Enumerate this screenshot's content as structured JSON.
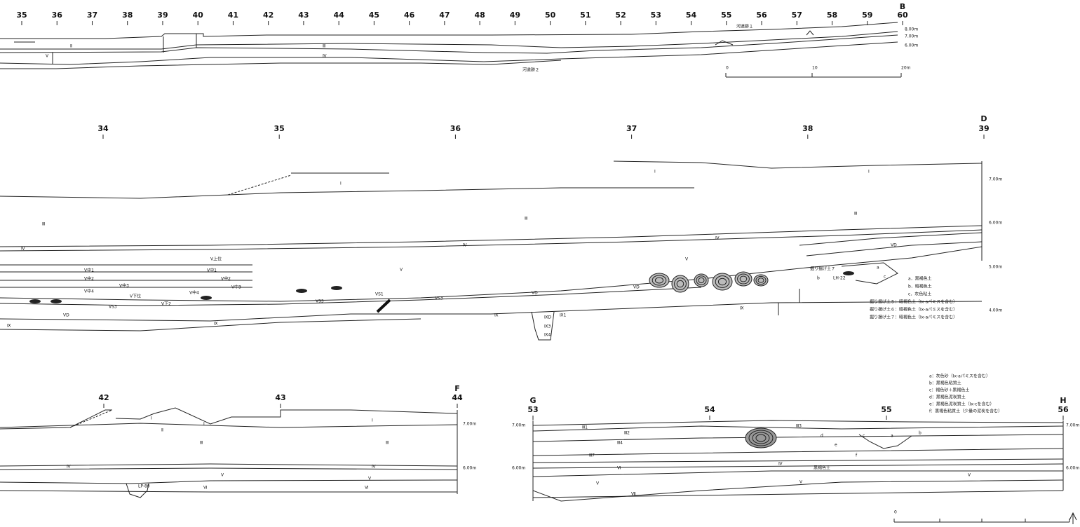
{
  "section_b": {
    "end": "B",
    "grid": [
      "35",
      "36",
      "37",
      "38",
      "39",
      "40",
      "41",
      "42",
      "43",
      "44",
      "45",
      "46",
      "47",
      "48",
      "49",
      "50",
      "51",
      "52",
      "53",
      "54",
      "55",
      "56",
      "57",
      "58",
      "59",
      "60"
    ],
    "elevations": [
      "8.00m",
      "7.00m",
      "6.00m"
    ],
    "labels": [
      "河道跡１",
      "河道跡２",
      "Ⅱ",
      "Ⅲ",
      "Ⅳ",
      "Ⅴ"
    ],
    "scale": [
      "0",
      "10",
      "20m"
    ]
  },
  "section_d": {
    "end": "D",
    "grid": [
      "34",
      "35",
      "36",
      "37",
      "38",
      "39"
    ],
    "elevations": [
      "7.00m",
      "6.00m",
      "5.00m",
      "4.00m"
    ],
    "labels": [
      "Ⅰ",
      "Ⅰ",
      "Ⅰ",
      "Ⅲ",
      "Ⅲ",
      "Ⅲ",
      "Ⅳ",
      "Ⅳ",
      "Ⅳ",
      "Ⅴ",
      "Ⅴ",
      "Ⅴ上位",
      "Ⅴ中1",
      "Ⅴ中1",
      "Ⅴ中2",
      "Ⅴ中2",
      "Ⅴ中3",
      "Ⅴ中3",
      "Ⅴ中4",
      "Ⅴ中4",
      "Ⅴ下位",
      "Ⅴ下2",
      "ⅤS3",
      "ⅤS3",
      "ⅤS3",
      "ⅤS1",
      "ⅤD",
      "ⅤD",
      "ⅤD",
      "ⅤD",
      "Ⅸ",
      "Ⅸ",
      "Ⅸ",
      "Ⅸ",
      "ⅨD",
      "Ⅸ3",
      "Ⅸ4",
      "Ⅸ1",
      "b",
      "LH-22",
      "掘り揚げ土７",
      "a",
      "c"
    ],
    "legend": [
      "a．黒褐色土",
      "b．暗褐色土",
      "c．灰色粘土",
      "掘り揚げ土５：暗褐色土（Ix-aパミスを含む）",
      "掘り揚げ土６：暗褐色土（Ix-aパミスを含む）",
      "掘り揚げ土７：暗褐色土（Ix-aパミスを含む）"
    ]
  },
  "section_f": {
    "end": "F",
    "grid": [
      "42",
      "43",
      "44"
    ],
    "elevations": [
      "7.00m",
      "6.00m"
    ],
    "labels": [
      "Ⅰ",
      "Ⅰ",
      "Ⅰ",
      "Ⅱ",
      "Ⅲ",
      "Ⅲ",
      "Ⅳ",
      "Ⅳ",
      "Ⅴ",
      "Ⅴ",
      "Ⅵ",
      "Ⅵ",
      "LP-80"
    ]
  },
  "section_gh": {
    "start": "G",
    "end": "H",
    "grid": [
      "53",
      "54",
      "55",
      "56"
    ],
    "elevations": [
      "7.00m",
      "6.00m",
      "7.00m",
      "6.00m"
    ],
    "labels": [
      "Ⅲ1",
      "Ⅲ2",
      "Ⅲ3",
      "Ⅲ4",
      "Ⅲ7",
      "Ⅳ",
      "Ⅴ",
      "Ⅴ",
      "Ⅴ",
      "Ⅵ",
      "Ⅶ",
      "a",
      "b",
      "c",
      "d",
      "e",
      "f",
      "黒褐色土"
    ],
    "legend": [
      "a：灰色砂（Ix-aパミスを含む）",
      "b：黒褐色粘質土",
      "c：褐色砂＋黒褐色土",
      "d：黒褐色泥炭質土",
      "e：黒褐色泥炭質土（Ix-cを含む）",
      "f：黒褐色粘質土（少量の泥炭を含む）"
    ]
  },
  "bottom_scale": {
    "labels": [
      "0"
    ]
  }
}
